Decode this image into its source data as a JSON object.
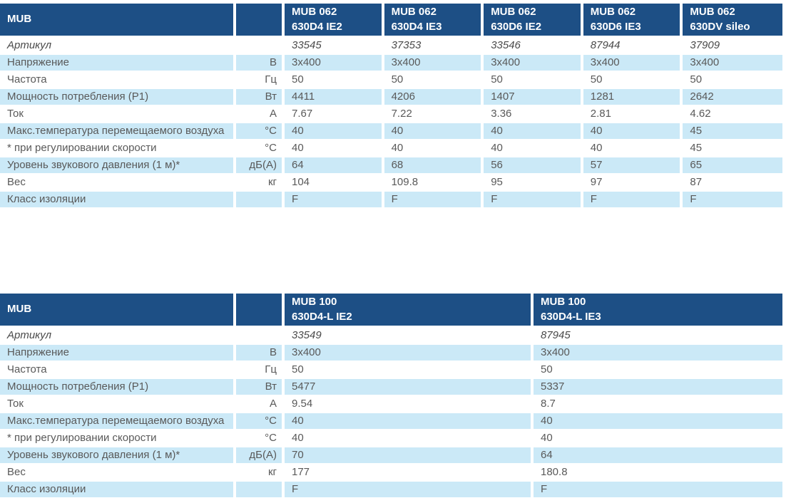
{
  "colors": {
    "header_bg": "#1d4f85",
    "header_text": "#ffffff",
    "row_alt_bg": "#cbe9f7",
    "body_text": "#595959"
  },
  "tables": [
    {
      "title": "MUB",
      "products": [
        {
          "line1": "MUB 062",
          "line2": "630D4 IE2"
        },
        {
          "line1": "MUB 062",
          "line2": "630D4 IE3"
        },
        {
          "line1": "MUB 062",
          "line2": "630D6 IE2"
        },
        {
          "line1": "MUB 062",
          "line2": "630D6 IE3"
        },
        {
          "line1": "MUB 062",
          "line2": "630DV sileo"
        }
      ],
      "rows": [
        {
          "label": "Артикул",
          "unit": "",
          "italic": true,
          "values": [
            "33545",
            "37353",
            "33546",
            "87944",
            "37909"
          ]
        },
        {
          "label": "Напряжение",
          "unit": "В",
          "values": [
            "3x400",
            "3x400",
            "3x400",
            "3x400",
            "3x400"
          ]
        },
        {
          "label": "Частота",
          "unit": "Гц",
          "values": [
            "50",
            "50",
            "50",
            "50",
            "50"
          ]
        },
        {
          "label": "Мощность потребления (P1)",
          "unit": "Вт",
          "values": [
            "4411",
            "4206",
            "1407",
            "1281",
            "2642"
          ]
        },
        {
          "label": "Ток",
          "unit": "А",
          "values": [
            "7.67",
            "7.22",
            "3.36",
            "2.81",
            "4.62"
          ]
        },
        {
          "label": "Макс.температура перемещаемого воздуха",
          "unit": "°C",
          "values": [
            "40",
            "40",
            "40",
            "40",
            "45"
          ]
        },
        {
          "label": "* при регулировании скорости",
          "unit": "°C",
          "values": [
            "40",
            "40",
            "40",
            "40",
            "45"
          ]
        },
        {
          "label": "Уровень звукового давления (1 м)*",
          "unit": "дБ(А)",
          "values": [
            "64",
            "68",
            "56",
            "57",
            "65"
          ]
        },
        {
          "label": "Вес",
          "unit": "кг",
          "values": [
            "104",
            "109.8",
            "95",
            "97",
            "87"
          ]
        },
        {
          "label": "Класс изоляции",
          "unit": "",
          "values": [
            "F",
            "F",
            "F",
            "F",
            "F"
          ]
        }
      ]
    },
    {
      "title": "MUB",
      "products": [
        {
          "line1": "MUB 100",
          "line2": "630D4-L IE2"
        },
        {
          "line1": "MUB 100",
          "line2": "630D4-L IE3"
        }
      ],
      "rows": [
        {
          "label": "Артикул",
          "unit": "",
          "italic": true,
          "values": [
            "33549",
            "87945"
          ]
        },
        {
          "label": "Напряжение",
          "unit": "В",
          "values": [
            "3x400",
            "3x400"
          ]
        },
        {
          "label": "Частота",
          "unit": "Гц",
          "values": [
            "50",
            "50"
          ]
        },
        {
          "label": "Мощность потребления (P1)",
          "unit": "Вт",
          "values": [
            "5477",
            "5337"
          ]
        },
        {
          "label": "Ток",
          "unit": "А",
          "values": [
            "9.54",
            "8.7"
          ]
        },
        {
          "label": "Макс.температура перемещаемого воздуха",
          "unit": "°C",
          "values": [
            "40",
            "40"
          ]
        },
        {
          "label": "* при регулировании скорости",
          "unit": "°C",
          "values": [
            "40",
            "40"
          ]
        },
        {
          "label": "Уровень звукового давления (1 м)*",
          "unit": "дБ(А)",
          "values": [
            "70",
            "64"
          ]
        },
        {
          "label": "Вес",
          "unit": "кг",
          "values": [
            "177",
            "180.8"
          ]
        },
        {
          "label": "Класс изоляции",
          "unit": "",
          "values": [
            "F",
            "F"
          ]
        }
      ]
    }
  ]
}
